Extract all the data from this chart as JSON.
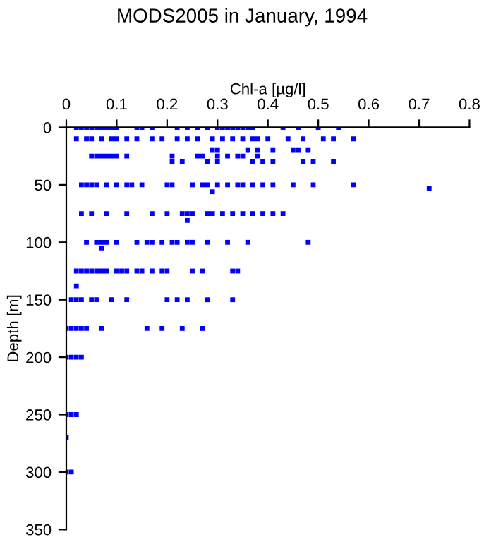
{
  "chart_data": {
    "type": "scatter",
    "title": "MODS2005 in January, 1994",
    "xlabel": "Chl-a [µg/l]",
    "ylabel": "Depth [m]",
    "xlim": [
      0,
      0.8
    ],
    "xticks": [
      0,
      0.1,
      0.2,
      0.3,
      0.4,
      0.5,
      0.6,
      0.7,
      0.8
    ],
    "ylim": [
      350,
      0
    ],
    "yticks": [
      0,
      50,
      100,
      150,
      200,
      250,
      300,
      350
    ],
    "marker": "square",
    "grid": false,
    "legend": false,
    "series": [
      {
        "color": "#0000ff",
        "x": [
          0.02,
          0.03,
          0.04,
          0.05,
          0.06,
          0.07,
          0.08,
          0.09,
          0.1,
          0.14,
          0.15,
          0.17,
          0.22,
          0.24,
          0.26,
          0.28,
          0.3,
          0.31,
          0.32,
          0.33,
          0.34,
          0.35,
          0.36,
          0.37,
          0.43,
          0.46,
          0.5,
          0.54,
          0.02,
          0.04,
          0.05,
          0.07,
          0.09,
          0.1,
          0.12,
          0.14,
          0.17,
          0.19,
          0.22,
          0.24,
          0.26,
          0.29,
          0.31,
          0.33,
          0.35,
          0.37,
          0.38,
          0.4,
          0.44,
          0.47,
          0.51,
          0.53,
          0.57,
          0.29,
          0.3,
          0.36,
          0.38,
          0.41,
          0.45,
          0.46,
          0.48,
          0.05,
          0.06,
          0.07,
          0.08,
          0.09,
          0.1,
          0.12,
          0.21,
          0.26,
          0.27,
          0.3,
          0.32,
          0.34,
          0.35,
          0.38,
          0.21,
          0.23,
          0.28,
          0.3,
          0.37,
          0.39,
          0.41,
          0.47,
          0.49,
          0.53,
          0.03,
          0.04,
          0.05,
          0.06,
          0.08,
          0.1,
          0.12,
          0.13,
          0.15,
          0.2,
          0.21,
          0.25,
          0.27,
          0.28,
          0.3,
          0.32,
          0.34,
          0.35,
          0.37,
          0.39,
          0.41,
          0.45,
          0.49,
          0.57,
          0.72,
          0.29,
          0.03,
          0.05,
          0.08,
          0.12,
          0.17,
          0.2,
          0.23,
          0.24,
          0.25,
          0.28,
          0.29,
          0.31,
          0.33,
          0.35,
          0.37,
          0.39,
          0.41,
          0.43,
          0.24,
          0.04,
          0.06,
          0.07,
          0.08,
          0.1,
          0.14,
          0.16,
          0.17,
          0.19,
          0.21,
          0.22,
          0.24,
          0.25,
          0.28,
          0.32,
          0.36,
          0.48,
          0.07,
          0.02,
          0.03,
          0.04,
          0.05,
          0.06,
          0.07,
          0.08,
          0.1,
          0.11,
          0.12,
          0.14,
          0.15,
          0.17,
          0.19,
          0.2,
          0.25,
          0.27,
          0.33,
          0.34,
          0.02,
          0.01,
          0.02,
          0.03,
          0.05,
          0.06,
          0.09,
          0.12,
          0.2,
          0.22,
          0.24,
          0.28,
          0.33,
          0,
          0.01,
          0.02,
          0.03,
          0.04,
          0.07,
          0.16,
          0.19,
          0.23,
          0.27,
          0,
          0.01,
          0.02,
          0.03,
          0,
          0.01,
          0.02,
          0,
          0,
          0.01
        ],
        "values": [
          0,
          0,
          0,
          0,
          0,
          0,
          0,
          0,
          0,
          0,
          0,
          0,
          0,
          0,
          0,
          0,
          0,
          0,
          0,
          0,
          0,
          0,
          0,
          0,
          0,
          0,
          0,
          0,
          10,
          10,
          10,
          10,
          10,
          10,
          10,
          10,
          10,
          10,
          10,
          10,
          10,
          10,
          10,
          10,
          10,
          10,
          10,
          10,
          10,
          10,
          10,
          10,
          10,
          20,
          20,
          20,
          20,
          20,
          20,
          20,
          20,
          25,
          25,
          25,
          25,
          25,
          25,
          25,
          25,
          25,
          25,
          25,
          25,
          25,
          25,
          25,
          30,
          30,
          30,
          30,
          30,
          30,
          30,
          30,
          30,
          30,
          50,
          50,
          50,
          50,
          50,
          50,
          50,
          50,
          50,
          50,
          50,
          50,
          50,
          50,
          50,
          50,
          50,
          50,
          50,
          50,
          50,
          50,
          50,
          50,
          53,
          56,
          75,
          75,
          75,
          75,
          75,
          75,
          75,
          75,
          75,
          75,
          75,
          75,
          75,
          75,
          75,
          75,
          75,
          75,
          81,
          100,
          100,
          100,
          100,
          100,
          100,
          100,
          100,
          100,
          100,
          100,
          100,
          100,
          100,
          100,
          100,
          100,
          105,
          125,
          125,
          125,
          125,
          125,
          125,
          125,
          125,
          125,
          125,
          125,
          125,
          125,
          125,
          125,
          125,
          125,
          125,
          125,
          138,
          150,
          150,
          150,
          150,
          150,
          150,
          150,
          150,
          150,
          150,
          150,
          150,
          175,
          175,
          175,
          175,
          175,
          175,
          175,
          175,
          175,
          175,
          200,
          200,
          200,
          200,
          250,
          250,
          250,
          270,
          300,
          300
        ]
      }
    ]
  }
}
